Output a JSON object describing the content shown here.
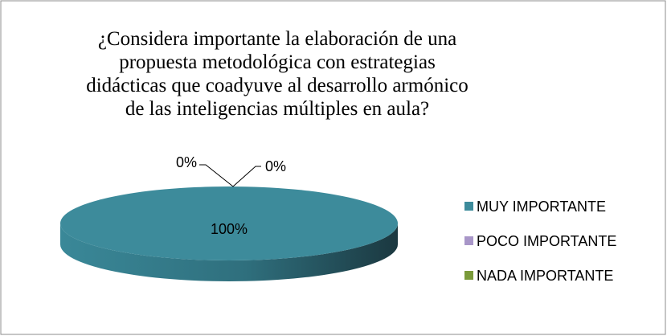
{
  "chart_data": {
    "type": "pie",
    "title": "¿Considera importante la elaboración de una propuesta metodológica con estrategias didácticas que coadyuve al desarrollo armónico de las inteligencias múltiples en aula?",
    "categories": [
      "MUY IMPORTANTE",
      "POCO IMPORTANTE",
      "NADA IMPORTANTE"
    ],
    "values": [
      100,
      0,
      0
    ],
    "value_labels": [
      "100%",
      "0%",
      "0%"
    ],
    "colors": [
      "#3d8b9b",
      "#a896c8",
      "#7a9a3a"
    ],
    "legend": "right"
  }
}
